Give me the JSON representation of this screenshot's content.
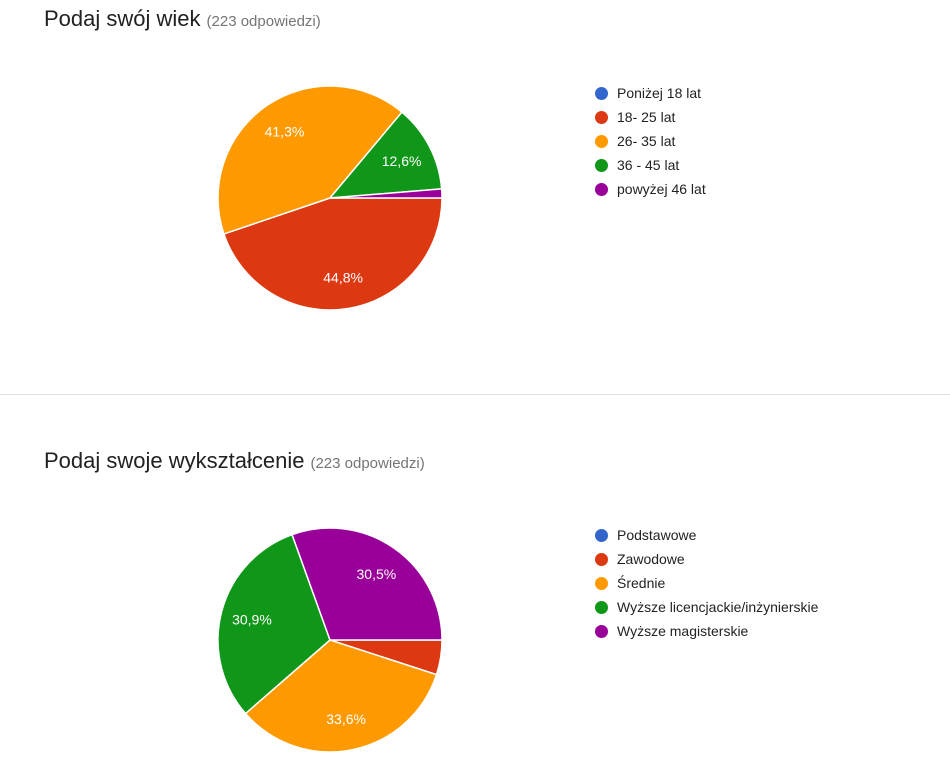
{
  "chart_data": [
    {
      "type": "pie",
      "title": "Podaj swój wiek",
      "responses": "(223 odpowiedzi)",
      "legend_position": "right",
      "categories": [
        "Poniżej 18 lat",
        "18- 25 lat",
        "26- 35 lat",
        "36 - 45 lat",
        "powyżej 46 lat"
      ],
      "values": [
        0,
        44.8,
        41.3,
        12.6,
        1.3
      ],
      "labels": [
        "",
        "44,8%",
        "41,3%",
        "12,6%",
        ""
      ],
      "colors": [
        "#3366cc",
        "#dc3912",
        "#ff9900",
        "#109618",
        "#990099"
      ]
    },
    {
      "type": "pie",
      "title": "Podaj swoje wykształcenie",
      "responses": "(223 odpowiedzi)",
      "legend_position": "right",
      "categories": [
        "Podstawowe",
        "Zawodowe",
        "Średnie",
        "Wyższe licencjackie/inżynierskie",
        "Wyższe magisterskie"
      ],
      "values": [
        0,
        5.0,
        33.6,
        30.9,
        30.5
      ],
      "labels": [
        "",
        "",
        "33,6%",
        "30,9%",
        "30,5%"
      ],
      "colors": [
        "#3366cc",
        "#dc3912",
        "#ff9900",
        "#109618",
        "#990099"
      ]
    }
  ]
}
